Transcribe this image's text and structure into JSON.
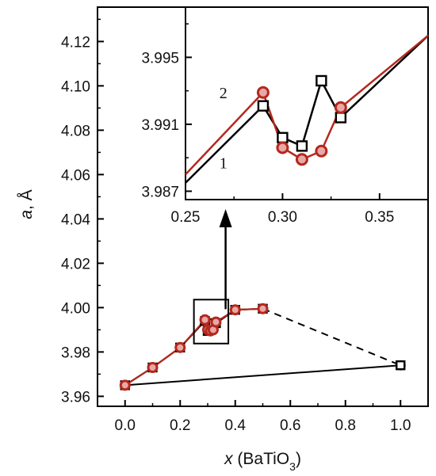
{
  "chart_data": [
    {
      "type": "line",
      "panel": "main",
      "xlabel": {
        "italic": "x",
        "text": "(BaTiO",
        "sub": "3",
        "close": ")"
      },
      "ylabel": {
        "italic": "a",
        "text": ", Å"
      },
      "xlim": [
        -0.1,
        1.1
      ],
      "ylim": [
        3.9555,
        4.1355
      ],
      "xticks": [
        0.0,
        0.2,
        0.4,
        0.6,
        0.8,
        1.0
      ],
      "xtick_labels": [
        "0.0",
        "0.2",
        "0.4",
        "0.6",
        "0.8",
        "1.0"
      ],
      "yticks": [
        3.96,
        3.98,
        4.0,
        4.02,
        4.04,
        4.06,
        4.08,
        4.1,
        4.12
      ],
      "ytick_labels": [
        "3.96",
        "3.98",
        "4.00",
        "4.02",
        "4.04",
        "4.06",
        "4.08",
        "4.10",
        "4.12"
      ],
      "series": [
        {
          "label": "1",
          "marker": "square",
          "color": "#000000",
          "x": [
            0.0,
            0.1,
            0.2,
            0.29,
            0.3,
            0.31,
            0.32,
            0.33,
            0.4,
            0.5
          ],
          "y": [
            3.965,
            3.973,
            3.982,
            3.994,
            3.9895,
            3.99,
            3.993,
            3.993,
            3.999,
            3.9995
          ]
        },
        {
          "label": "2",
          "marker": "circle",
          "color": "#b5281c",
          "fill": "#e8a8a8",
          "x": [
            0.0,
            0.1,
            0.2,
            0.29,
            0.3,
            0.31,
            0.32,
            0.33,
            0.4,
            0.5
          ],
          "y": [
            3.965,
            3.973,
            3.982,
            3.9945,
            3.99,
            3.9895,
            3.99,
            3.9935,
            3.999,
            3.9995
          ]
        }
      ],
      "extra_lines": [
        {
          "style": "solid",
          "x": [
            0.0,
            1.0
          ],
          "y": [
            3.965,
            3.974
          ]
        },
        {
          "style": "dashed",
          "x": [
            0.5,
            1.0
          ],
          "y": [
            3.9995,
            3.974
          ]
        }
      ],
      "endpoint": {
        "x": 1.0,
        "y": 3.974
      }
    },
    {
      "type": "line",
      "panel": "inset",
      "xlim": [
        0.25,
        0.375
      ],
      "ylim": [
        3.9865,
        3.998
      ],
      "xticks": [
        0.25,
        0.3,
        0.35
      ],
      "xtick_labels": [
        "0.25",
        "0.30",
        "0.35"
      ],
      "yticks": [
        3.987,
        3.991,
        3.995
      ],
      "ytick_labels": [
        "3.987",
        "3.991",
        "3.995"
      ],
      "series": [
        {
          "label": "1",
          "marker": "square",
          "color": "#000000",
          "x": [
            0.25,
            0.29,
            0.3,
            0.31,
            0.32,
            0.33,
            0.375
          ],
          "y": [
            3.9875,
            3.9921,
            3.9902,
            3.9897,
            3.9936,
            3.9914,
            3.9963
          ],
          "markers_at": [
            0.29,
            0.3,
            0.31,
            0.32,
            0.33
          ]
        },
        {
          "label": "2",
          "marker": "circle",
          "color": "#b5281c",
          "fill": "#e8a8a8",
          "x": [
            0.25,
            0.29,
            0.3,
            0.31,
            0.32,
            0.33,
            0.375
          ],
          "y": [
            3.988,
            3.9929,
            3.9896,
            3.9889,
            3.9894,
            3.992,
            3.9963
          ],
          "markers_at": [
            0.29,
            0.3,
            0.31,
            0.32,
            0.33
          ]
        }
      ]
    }
  ],
  "colors": {
    "black": "#000000",
    "red": "#b5281c",
    "marker_fill": "#e8a8a8"
  }
}
